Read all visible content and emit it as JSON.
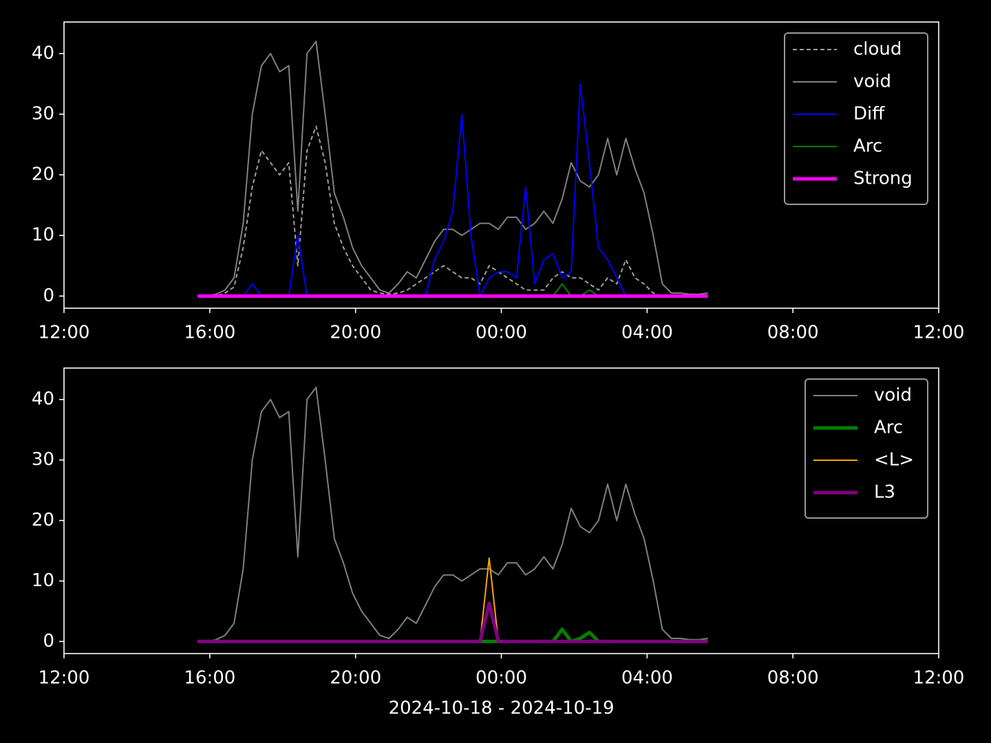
{
  "chart_data": [
    {
      "type": "line",
      "legend": "upper right",
      "background": "#000000",
      "xlim": [
        "2024-10-18 12:00",
        "2024-10-19 12:00"
      ],
      "xticks": [
        {
          "value": "2024-10-18 12:00",
          "label": "12:00"
        },
        {
          "value": "2024-10-18 16:00",
          "label": "16:00"
        },
        {
          "value": "2024-10-18 20:00",
          "label": "20:00"
        },
        {
          "value": "2024-10-19 00:00",
          "label": "00:00"
        },
        {
          "value": "2024-10-19 04:00",
          "label": "04:00"
        },
        {
          "value": "2024-10-19 08:00",
          "label": "08:00"
        },
        {
          "value": "2024-10-19 12:00",
          "label": "12:00"
        }
      ],
      "ylim": [
        -2,
        45.2
      ],
      "yticks": [
        0,
        10,
        20,
        30,
        40
      ],
      "x": [
        "2024-10-18 15:40",
        "2024-10-18 15:55",
        "2024-10-18 16:10",
        "2024-10-18 16:25",
        "2024-10-18 16:40",
        "2024-10-18 16:55",
        "2024-10-18 17:10",
        "2024-10-18 17:25",
        "2024-10-18 17:40",
        "2024-10-18 17:55",
        "2024-10-18 18:10",
        "2024-10-18 18:25",
        "2024-10-18 18:40",
        "2024-10-18 18:55",
        "2024-10-18 19:10",
        "2024-10-18 19:25",
        "2024-10-18 19:40",
        "2024-10-18 19:55",
        "2024-10-18 20:10",
        "2024-10-18 20:25",
        "2024-10-18 20:40",
        "2024-10-18 20:55",
        "2024-10-18 21:10",
        "2024-10-18 21:25",
        "2024-10-18 21:40",
        "2024-10-18 21:55",
        "2024-10-18 22:10",
        "2024-10-18 22:25",
        "2024-10-18 22:40",
        "2024-10-18 22:55",
        "2024-10-18 23:10",
        "2024-10-18 23:25",
        "2024-10-18 23:40",
        "2024-10-18 23:55",
        "2024-10-19 00:10",
        "2024-10-19 00:25",
        "2024-10-19 00:40",
        "2024-10-19 00:55",
        "2024-10-19 01:10",
        "2024-10-19 01:25",
        "2024-10-19 01:40",
        "2024-10-19 01:55",
        "2024-10-19 02:10",
        "2024-10-19 02:25",
        "2024-10-19 02:40",
        "2024-10-19 02:55",
        "2024-10-19 03:10",
        "2024-10-19 03:25",
        "2024-10-19 03:40",
        "2024-10-19 03:55",
        "2024-10-19 04:10",
        "2024-10-19 04:25",
        "2024-10-19 04:40",
        "2024-10-19 04:55",
        "2024-10-19 05:10",
        "2024-10-19 05:25",
        "2024-10-19 05:40"
      ],
      "series": [
        {
          "name": "cloud",
          "color": "#a0a0a0",
          "linestyle": "dashed",
          "linewidth": 2,
          "values": [
            0,
            0,
            0,
            0.5,
            1.5,
            8,
            18,
            24,
            22,
            20,
            22,
            5,
            24,
            28,
            22,
            12,
            8,
            5,
            3,
            1,
            0.5,
            0.3,
            0.5,
            1,
            2,
            3,
            4,
            5,
            4,
            3,
            3,
            2,
            5,
            4,
            3,
            2,
            1,
            1,
            1,
            3,
            4,
            3,
            3,
            2,
            1,
            3,
            2,
            6,
            3,
            2,
            0.5,
            0,
            0,
            0,
            0,
            0,
            0
          ]
        },
        {
          "name": "void",
          "color": "#808080",
          "linestyle": "solid",
          "linewidth": 2,
          "values": [
            0,
            0,
            0.3,
            1,
            3,
            12,
            30,
            38,
            40,
            37,
            38,
            14,
            40,
            42,
            30,
            17,
            13,
            8,
            5,
            3,
            1,
            0.5,
            2,
            4,
            3,
            6,
            9,
            11,
            11,
            10,
            11,
            12,
            12,
            11,
            13,
            13,
            11,
            12,
            14,
            12,
            16,
            22,
            19,
            18,
            20,
            26,
            20,
            26,
            21,
            17,
            10,
            2,
            0.5,
            0.5,
            0.3,
            0.3,
            0.5
          ]
        },
        {
          "name": "Diff",
          "color": "#0000ff",
          "linestyle": "solid",
          "linewidth": 2,
          "values": [
            0,
            0,
            0,
            0,
            0,
            0,
            2,
            0,
            0,
            0,
            0,
            10,
            0,
            0,
            0,
            0,
            0,
            0,
            0,
            0,
            0,
            0,
            0,
            0,
            0,
            0,
            6,
            9,
            14,
            30,
            10,
            0,
            3,
            4,
            4,
            3,
            18,
            2,
            6,
            7,
            3,
            4,
            35,
            22,
            8,
            6,
            3,
            0,
            0,
            0,
            0,
            0,
            0,
            0,
            0,
            0,
            0
          ]
        },
        {
          "name": "Arc",
          "color": "#008000",
          "linestyle": "solid",
          "linewidth": 2,
          "values": [
            0,
            0,
            0,
            0,
            0,
            0,
            0,
            0,
            0,
            0,
            0,
            0,
            0,
            0,
            0,
            0,
            0,
            0,
            0,
            0,
            0,
            0,
            0,
            0,
            0,
            0,
            0,
            0,
            0,
            0,
            0,
            0,
            0,
            0,
            0,
            0,
            0,
            0,
            0,
            0,
            2,
            0,
            0,
            1,
            0,
            0,
            0,
            0,
            0,
            0,
            0,
            0,
            0,
            0,
            0,
            0,
            0
          ]
        },
        {
          "name": "Strong",
          "color": "#ff00ff",
          "linestyle": "solid",
          "linewidth": 5,
          "values": [
            0,
            0,
            0,
            0,
            0,
            0,
            0,
            0,
            0,
            0,
            0,
            0,
            0,
            0,
            0,
            0,
            0,
            0,
            0,
            0,
            0,
            0,
            0,
            0,
            0,
            0,
            0,
            0,
            0,
            0,
            0,
            0,
            0,
            0,
            0,
            0,
            0,
            0,
            0,
            0,
            0,
            0,
            0,
            0,
            0,
            0,
            0,
            0,
            0,
            0,
            0,
            0,
            0,
            0,
            0,
            0,
            0
          ]
        }
      ]
    },
    {
      "type": "line",
      "legend": "upper right",
      "background": "#000000",
      "xlabel": "2024-10-18 - 2024-10-19",
      "xlim": [
        "2024-10-18 12:00",
        "2024-10-19 12:00"
      ],
      "xticks": [
        {
          "value": "2024-10-18 12:00",
          "label": "12:00"
        },
        {
          "value": "2024-10-18 16:00",
          "label": "16:00"
        },
        {
          "value": "2024-10-18 20:00",
          "label": "20:00"
        },
        {
          "value": "2024-10-19 00:00",
          "label": "00:00"
        },
        {
          "value": "2024-10-19 04:00",
          "label": "04:00"
        },
        {
          "value": "2024-10-19 08:00",
          "label": "08:00"
        },
        {
          "value": "2024-10-19 12:00",
          "label": "12:00"
        }
      ],
      "ylim": [
        -2,
        45.2
      ],
      "yticks": [
        0,
        10,
        20,
        30,
        40
      ],
      "x": [
        "2024-10-18 15:40",
        "2024-10-18 15:55",
        "2024-10-18 16:10",
        "2024-10-18 16:25",
        "2024-10-18 16:40",
        "2024-10-18 16:55",
        "2024-10-18 17:10",
        "2024-10-18 17:25",
        "2024-10-18 17:40",
        "2024-10-18 17:55",
        "2024-10-18 18:10",
        "2024-10-18 18:25",
        "2024-10-18 18:40",
        "2024-10-18 18:55",
        "2024-10-18 19:10",
        "2024-10-18 19:25",
        "2024-10-18 19:40",
        "2024-10-18 19:55",
        "2024-10-18 20:10",
        "2024-10-18 20:25",
        "2024-10-18 20:40",
        "2024-10-18 20:55",
        "2024-10-18 21:10",
        "2024-10-18 21:25",
        "2024-10-18 21:40",
        "2024-10-18 21:55",
        "2024-10-18 22:10",
        "2024-10-18 22:25",
        "2024-10-18 22:40",
        "2024-10-18 22:55",
        "2024-10-18 23:10",
        "2024-10-18 23:25",
        "2024-10-18 23:40",
        "2024-10-18 23:55",
        "2024-10-19 00:10",
        "2024-10-19 00:25",
        "2024-10-19 00:40",
        "2024-10-19 00:55",
        "2024-10-19 01:10",
        "2024-10-19 01:25",
        "2024-10-19 01:40",
        "2024-10-19 01:55",
        "2024-10-19 02:10",
        "2024-10-19 02:25",
        "2024-10-19 02:40",
        "2024-10-19 02:55",
        "2024-10-19 03:10",
        "2024-10-19 03:25",
        "2024-10-19 03:40",
        "2024-10-19 03:55",
        "2024-10-19 04:10",
        "2024-10-19 04:25",
        "2024-10-19 04:40",
        "2024-10-19 04:55",
        "2024-10-19 05:10",
        "2024-10-19 05:25",
        "2024-10-19 05:40"
      ],
      "series": [
        {
          "name": "void",
          "color": "#808080",
          "linestyle": "solid",
          "linewidth": 2,
          "values": [
            0,
            0,
            0.3,
            1,
            3,
            12,
            30,
            38,
            40,
            37,
            38,
            14,
            40,
            42,
            30,
            17,
            13,
            8,
            5,
            3,
            1,
            0.5,
            2,
            4,
            3,
            6,
            9,
            11,
            11,
            10,
            11,
            12,
            12,
            11,
            13,
            13,
            11,
            12,
            14,
            12,
            16,
            22,
            19,
            18,
            20,
            26,
            20,
            26,
            21,
            17,
            10,
            2,
            0.5,
            0.5,
            0.3,
            0.3,
            0.5
          ]
        },
        {
          "name": "Arc",
          "color": "#008000",
          "linestyle": "solid",
          "linewidth": 5,
          "values": [
            0,
            0,
            0,
            0,
            0,
            0,
            0,
            0,
            0,
            0,
            0,
            0,
            0,
            0,
            0,
            0,
            0,
            0,
            0,
            0,
            0,
            0,
            0,
            0,
            0,
            0,
            0,
            0,
            0,
            0,
            0,
            0,
            0,
            0,
            0,
            0,
            0,
            0,
            0,
            0,
            2,
            0,
            0.5,
            1.5,
            0,
            0,
            0,
            0,
            0,
            0,
            0,
            0,
            0,
            0,
            0,
            0,
            0
          ]
        },
        {
          "name": "<L>",
          "color": "#ffa500",
          "linestyle": "solid",
          "linewidth": 2,
          "values": [
            0,
            0,
            0,
            0,
            0,
            0,
            0,
            0,
            0,
            0,
            0,
            0,
            0,
            0,
            0,
            0,
            0,
            0,
            0,
            0,
            0,
            0,
            0,
            0,
            0,
            0,
            0,
            0,
            0,
            0,
            0,
            0,
            13.8,
            0,
            0,
            0,
            0,
            0,
            0,
            0,
            0,
            0,
            0,
            0,
            0,
            0,
            0,
            0,
            0,
            0,
            0,
            0,
            0,
            0,
            0,
            0,
            0
          ]
        },
        {
          "name": "L3",
          "color": "#800080",
          "linestyle": "solid",
          "linewidth": 5,
          "values": [
            0,
            0,
            0,
            0,
            0,
            0,
            0,
            0,
            0,
            0,
            0,
            0,
            0,
            0,
            0,
            0,
            0,
            0,
            0,
            0,
            0,
            0,
            0,
            0,
            0,
            0,
            0,
            0,
            0,
            0,
            0,
            0,
            6.3,
            0,
            0,
            0,
            0,
            0,
            0,
            0,
            0,
            0,
            0,
            0,
            0,
            0,
            0,
            0,
            0,
            0,
            0,
            0,
            0,
            0,
            0,
            0,
            0
          ]
        }
      ]
    }
  ]
}
